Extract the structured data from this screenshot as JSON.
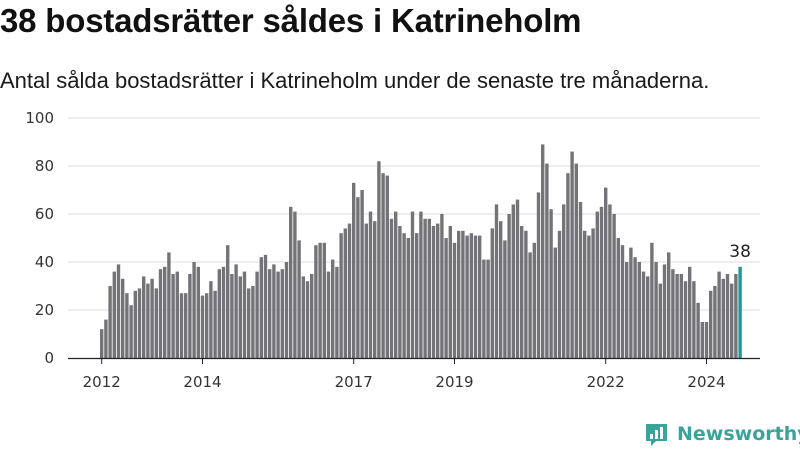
{
  "title": "38 bostadsrätter såldes i Katrineholm",
  "subtitle": "Antal sålda bostadsrätter i Katrineholm under de senaste tre månaderna.",
  "brand": {
    "name": "Newsworthy",
    "icon": "newsworthy-logo-icon",
    "color": "#3aa39a"
  },
  "colors": {
    "bar": "#747378",
    "highlight": "#1d9a92",
    "grid": "#dddddd",
    "axis": "#222222"
  },
  "chart_data": {
    "type": "bar",
    "title": "38 bostadsrätter såldes i Katrineholm",
    "subtitle": "Antal sålda bostadsrätter i Katrineholm under de senaste tre månaderna.",
    "xlabel": "",
    "ylabel": "",
    "ylim": [
      0,
      100
    ],
    "yticks": [
      0,
      20,
      40,
      60,
      80,
      100
    ],
    "xticks": [
      "2012",
      "2014",
      "2017",
      "2019",
      "2022",
      "2024"
    ],
    "grid": true,
    "highlight_last": true,
    "last_value_label": "38",
    "values": [
      12,
      16,
      30,
      36,
      39,
      33,
      27,
      22,
      28,
      29,
      34,
      31,
      33,
      29,
      37,
      38,
      44,
      35,
      36,
      27,
      27,
      35,
      40,
      38,
      26,
      27,
      32,
      28,
      37,
      38,
      47,
      35,
      39,
      34,
      36,
      29,
      30,
      36,
      42,
      43,
      37,
      39,
      36,
      37,
      40,
      63,
      61,
      49,
      34,
      32,
      35,
      47,
      48,
      48,
      36,
      41,
      38,
      52,
      54,
      56,
      73,
      67,
      70,
      56,
      61,
      57,
      82,
      77,
      76,
      58,
      61,
      55,
      52,
      50,
      61,
      52,
      61,
      58,
      58,
      55,
      56,
      60,
      50,
      55,
      48,
      53,
      53,
      51,
      52,
      51,
      51,
      41,
      41,
      54,
      64,
      57,
      49,
      60,
      64,
      66,
      55,
      53,
      44,
      48,
      69,
      89,
      81,
      62,
      46,
      53,
      64,
      77,
      86,
      81,
      65,
      53,
      51,
      54,
      61,
      63,
      71,
      64,
      60,
      50,
      47,
      40,
      46,
      42,
      40,
      36,
      34,
      48,
      40,
      31,
      39,
      44,
      37,
      35,
      35,
      32,
      38,
      32,
      23,
      15,
      15,
      28,
      30,
      36,
      33,
      35,
      31,
      35,
      38
    ]
  }
}
